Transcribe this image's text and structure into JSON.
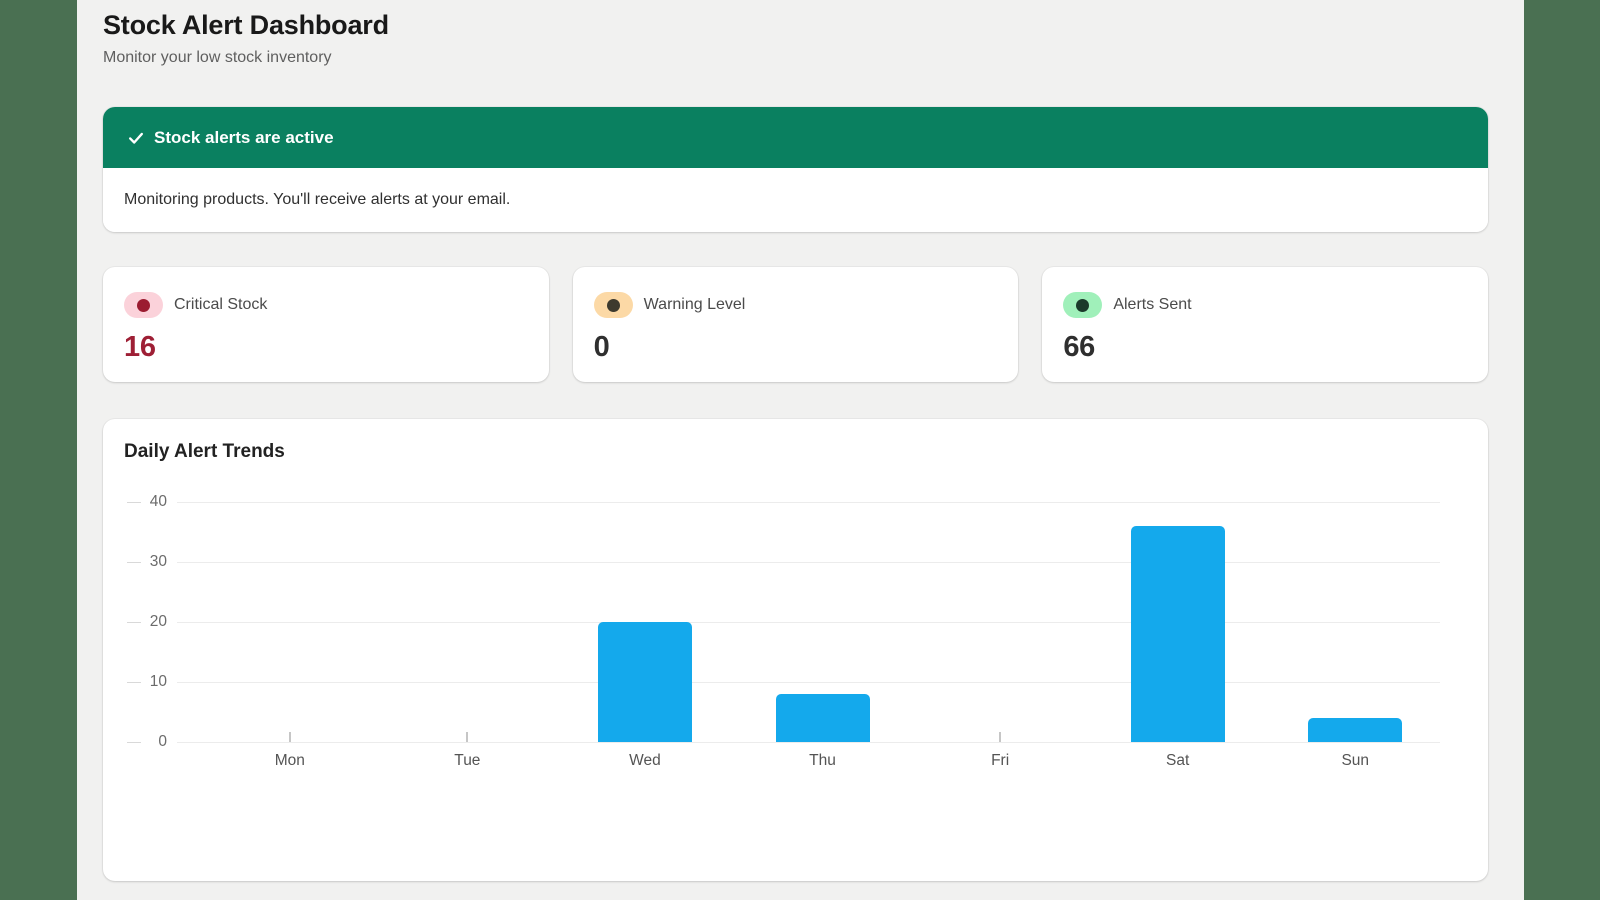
{
  "frame": {
    "edge_color": "#4a7052",
    "page_bg": "#f1f1f0"
  },
  "page": {
    "title": "Stock Alert Dashboard",
    "subtitle": "Monitor your low stock inventory"
  },
  "banner": {
    "title": "Stock alerts are active",
    "body": "Monitoring products. You'll receive alerts at your email.",
    "header_bg": "#0a8060",
    "header_text_color": "#ffffff"
  },
  "stats": [
    {
      "label": "Critical Stock",
      "value": "16",
      "badge_bg": "#fbd2da",
      "dot_color": "#9b1c31",
      "value_color": "#9e1f35"
    },
    {
      "label": "Warning Level",
      "value": "0",
      "badge_bg": "#fcd9a6",
      "dot_color": "#3d3a2e",
      "value_color": "#2f2f2f"
    },
    {
      "label": "Alerts Sent",
      "value": "66",
      "badge_bg": "#a0f0ba",
      "dot_color": "#1b3a2a",
      "value_color": "#2f2f2f"
    }
  ],
  "chart_card": {
    "title": "Daily Alert Trends"
  },
  "chart_data": {
    "type": "bar",
    "title": "Daily Alert Trends",
    "categories": [
      "Mon",
      "Tue",
      "Wed",
      "Thu",
      "Fri",
      "Sat",
      "Sun"
    ],
    "values": [
      0,
      0,
      20,
      8,
      0,
      36,
      4
    ],
    "xlabel": "",
    "ylabel": "",
    "ylim": [
      0,
      40
    ],
    "yticks": [
      0,
      10,
      20,
      30,
      40
    ],
    "bar_color": "#14a9ec",
    "grid": true,
    "legend_position": "none"
  }
}
